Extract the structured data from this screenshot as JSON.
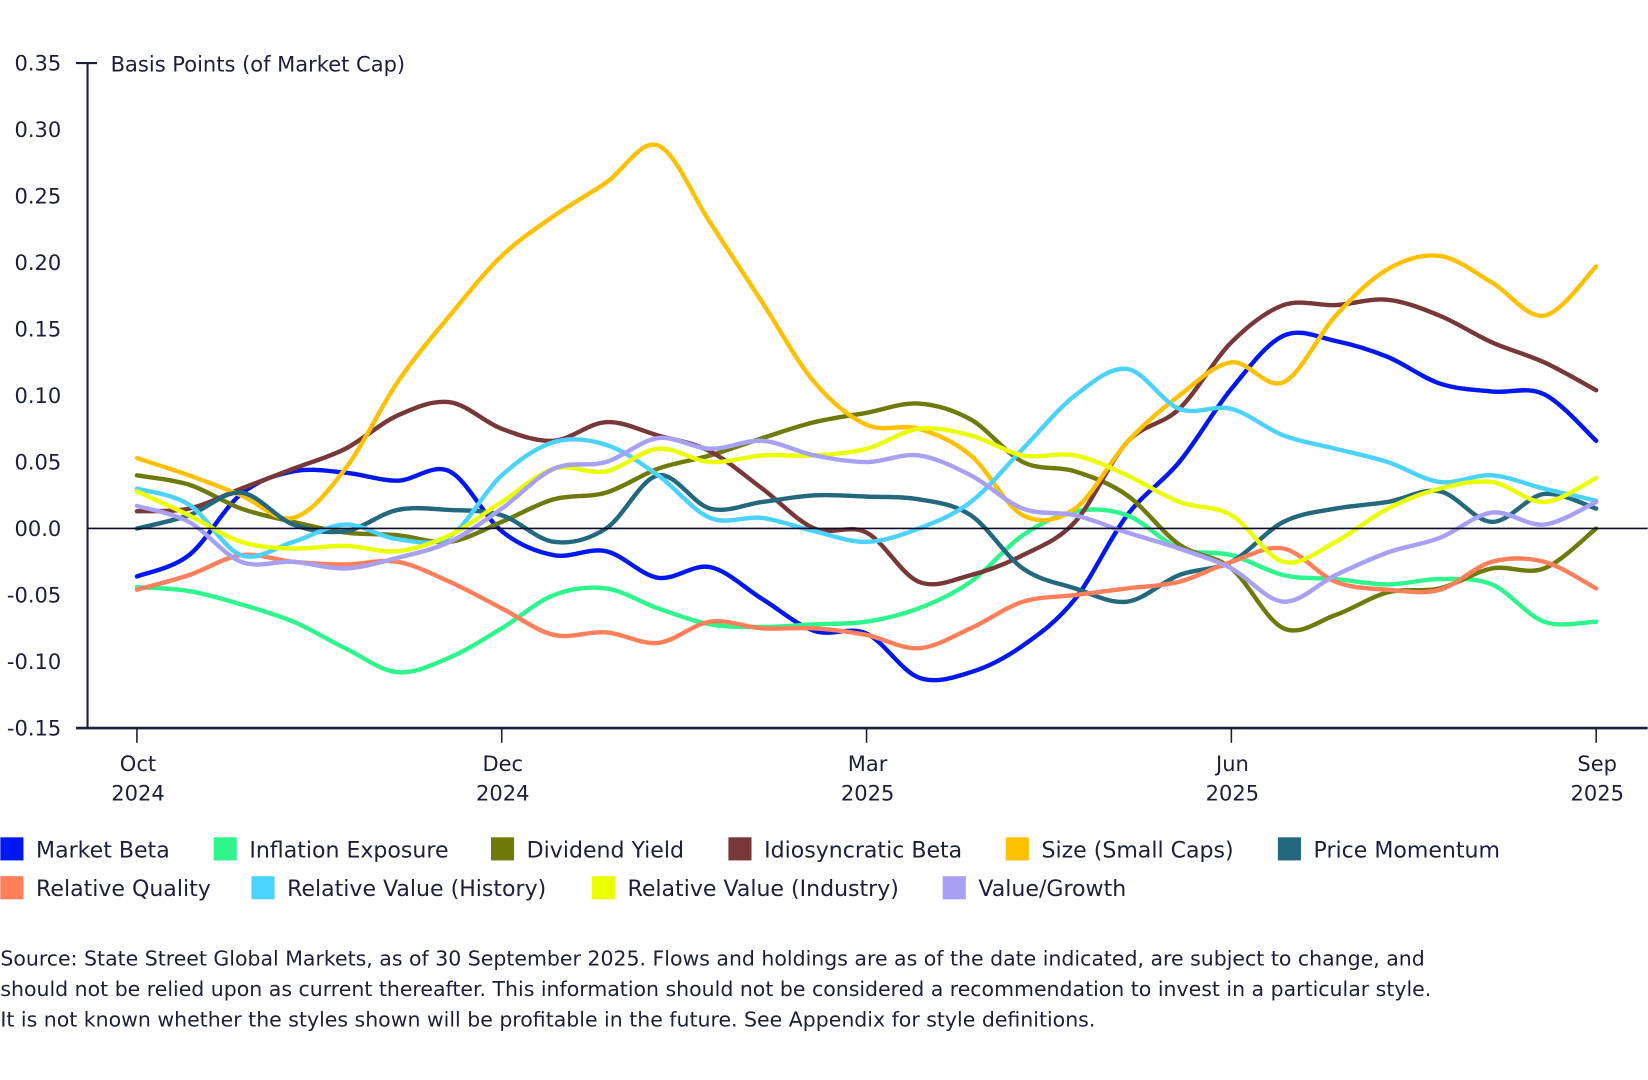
{
  "chart_data": {
    "type": "line",
    "ylabel": "Basis Points (of Market Cap)",
    "ylim": [
      -0.15,
      0.35
    ],
    "yticks": [
      "0.35",
      "0.30",
      "0.25",
      "0.20",
      "0.15",
      "0.10",
      "0.05",
      "00.0",
      "-0.05",
      "-0.10",
      "-0.15"
    ],
    "ytick_values": [
      0.35,
      0.3,
      0.25,
      0.2,
      0.15,
      0.1,
      0.05,
      0.0,
      -0.05,
      -0.1,
      -0.15
    ],
    "xticks": [
      {
        "month": "Oct",
        "year": "2024"
      },
      {
        "month": "Dec",
        "year": "2024"
      },
      {
        "month": "Mar",
        "year": "2025"
      },
      {
        "month": "Jun",
        "year": "2025"
      },
      {
        "month": "Sep",
        "year": "2025"
      }
    ],
    "x_range": [
      "Oct 2024",
      "Sep 2025"
    ],
    "zero_line": true,
    "grid": false,
    "legend_placement": "bottom",
    "series": [
      {
        "name": "Market Beta",
        "color": "#0018F0",
        "values": [
          -0.036,
          -0.02,
          0.026,
          0.043,
          0.042,
          0.036,
          0.043,
          -0.002,
          -0.02,
          -0.017,
          -0.037,
          -0.029,
          -0.053,
          -0.077,
          -0.079,
          -0.112,
          -0.108,
          -0.088,
          -0.053,
          0.01,
          0.05,
          0.105,
          0.145,
          0.141,
          0.129,
          0.109,
          0.103,
          0.101,
          0.066
        ]
      },
      {
        "name": "Inflation Exposure",
        "color": "#2EF58C",
        "values": [
          -0.044,
          -0.047,
          -0.057,
          -0.07,
          -0.09,
          -0.108,
          -0.097,
          -0.075,
          -0.05,
          -0.045,
          -0.06,
          -0.072,
          -0.074,
          -0.072,
          -0.07,
          -0.06,
          -0.04,
          -0.005,
          0.013,
          0.01,
          -0.015,
          -0.02,
          -0.035,
          -0.038,
          -0.042,
          -0.038,
          -0.042,
          -0.07,
          -0.07
        ]
      },
      {
        "name": "Dividend Yield",
        "color": "#6E7B0A",
        "values": [
          0.04,
          0.033,
          0.015,
          0.005,
          -0.003,
          -0.005,
          -0.01,
          0.005,
          0.022,
          0.027,
          0.045,
          0.055,
          0.068,
          0.08,
          0.087,
          0.094,
          0.082,
          0.05,
          0.043,
          0.025,
          -0.012,
          -0.03,
          -0.075,
          -0.065,
          -0.048,
          -0.045,
          -0.03,
          -0.03,
          0.0
        ]
      },
      {
        "name": "Idiosyncratic Beta",
        "color": "#783838",
        "values": [
          0.013,
          0.015,
          0.03,
          0.045,
          0.06,
          0.085,
          0.095,
          0.075,
          0.066,
          0.08,
          0.07,
          0.058,
          0.03,
          0.0,
          -0.003,
          -0.04,
          -0.035,
          -0.02,
          0.005,
          0.065,
          0.09,
          0.14,
          0.168,
          0.168,
          0.172,
          0.16,
          0.14,
          0.125,
          0.104
        ]
      },
      {
        "name": "Size (Small Caps)",
        "color": "#FFC000",
        "values": [
          0.053,
          0.04,
          0.025,
          0.008,
          0.045,
          0.11,
          0.16,
          0.205,
          0.235,
          0.26,
          0.288,
          0.23,
          0.17,
          0.11,
          0.078,
          0.075,
          0.055,
          0.01,
          0.015,
          0.065,
          0.1,
          0.125,
          0.11,
          0.16,
          0.195,
          0.205,
          0.185,
          0.16,
          0.197
        ]
      },
      {
        "name": "Price Momentum",
        "color": "#24687E",
        "values": [
          0.0,
          0.01,
          0.027,
          0.003,
          -0.002,
          0.014,
          0.014,
          0.01,
          -0.01,
          0.0,
          0.04,
          0.015,
          0.02,
          0.025,
          0.024,
          0.022,
          0.01,
          -0.03,
          -0.045,
          -0.055,
          -0.035,
          -0.025,
          0.005,
          0.015,
          0.02,
          0.028,
          0.005,
          0.026,
          0.015
        ]
      },
      {
        "name": "Relative Quality",
        "color": "#FF7F5A",
        "values": [
          -0.046,
          -0.035,
          -0.02,
          -0.025,
          -0.027,
          -0.025,
          -0.04,
          -0.06,
          -0.08,
          -0.078,
          -0.086,
          -0.07,
          -0.075,
          -0.075,
          -0.08,
          -0.09,
          -0.075,
          -0.055,
          -0.05,
          -0.045,
          -0.04,
          -0.025,
          -0.015,
          -0.04,
          -0.046,
          -0.046,
          -0.025,
          -0.025,
          -0.045
        ]
      },
      {
        "name": "Relative Value (History)",
        "color": "#4CD2FF",
        "values": [
          0.03,
          0.018,
          -0.02,
          -0.01,
          0.003,
          -0.008,
          -0.006,
          0.04,
          0.065,
          0.063,
          0.04,
          0.008,
          0.008,
          -0.002,
          -0.01,
          0.0,
          0.02,
          0.06,
          0.1,
          0.12,
          0.09,
          0.09,
          0.07,
          0.06,
          0.05,
          0.035,
          0.04,
          0.03,
          0.021
        ]
      },
      {
        "name": "Relative Value (Industry)",
        "color": "#EAFF00",
        "values": [
          0.028,
          0.01,
          -0.01,
          -0.015,
          -0.013,
          -0.017,
          -0.005,
          0.02,
          0.045,
          0.043,
          0.06,
          0.05,
          0.055,
          0.055,
          0.06,
          0.075,
          0.07,
          0.055,
          0.055,
          0.04,
          0.02,
          0.01,
          -0.025,
          -0.01,
          0.015,
          0.03,
          0.035,
          0.02,
          0.038
        ]
      },
      {
        "name": "Value/Growth",
        "color": "#A7A0F5",
        "values": [
          0.017,
          0.005,
          -0.025,
          -0.025,
          -0.03,
          -0.022,
          -0.01,
          0.015,
          0.045,
          0.05,
          0.068,
          0.06,
          0.066,
          0.055,
          0.05,
          0.055,
          0.04,
          0.015,
          0.01,
          -0.003,
          -0.015,
          -0.03,
          -0.055,
          -0.035,
          -0.018,
          -0.007,
          0.012,
          0.003,
          0.02
        ]
      }
    ]
  },
  "source_note": [
    "Source: State Street Global Markets, as of 30 September 2025. Flows and holdings are as of the date indicated, are subject to change, and",
    "should not be relied upon as current thereafter. This information should not be considered a recommendation to invest in a particular style.",
    "It is not known whether the styles shown will be profitable in the future. See Appendix for style definitions."
  ]
}
